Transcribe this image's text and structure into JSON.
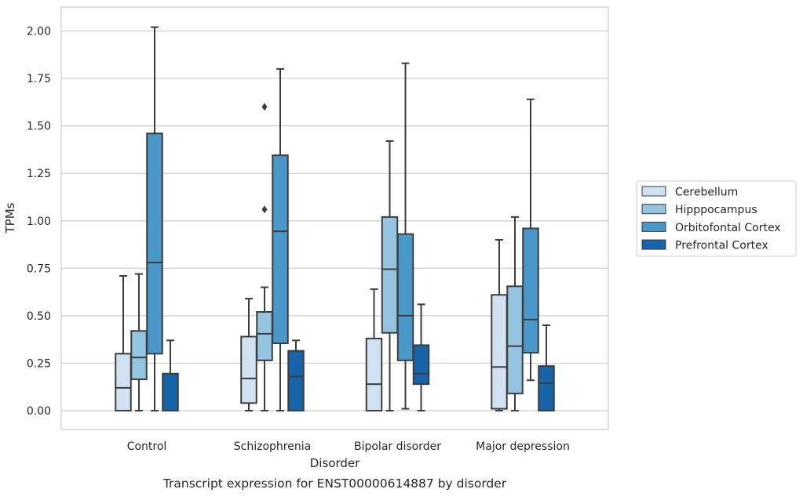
{
  "chart_data": {
    "type": "box",
    "xlabel": "Disorder",
    "ylabel": "TPMs",
    "caption": "Transcript expression for ENST00000614887 by disorder",
    "ylim": [
      -0.1,
      2.12
    ],
    "yticks": [
      0.0,
      0.25,
      0.5,
      0.75,
      1.0,
      1.25,
      1.5,
      1.75,
      2.0
    ],
    "ytick_labels": [
      "0.00",
      "0.25",
      "0.50",
      "0.75",
      "1.00",
      "1.25",
      "1.50",
      "1.75",
      "2.00"
    ],
    "grid": "horizontal",
    "legend_position": "right",
    "categories": [
      "Control",
      "Schizophrenia",
      "Bipolar disorder",
      "Major depression"
    ],
    "series": [
      {
        "name": "Cerebellum",
        "color": "#d0e1f2",
        "boxes": [
          {
            "whislo": 0.0,
            "q1": 0.0,
            "med": 0.12,
            "q3": 0.3,
            "whishi": 0.71,
            "fliers": []
          },
          {
            "whislo": 0.0,
            "q1": 0.04,
            "med": 0.17,
            "q3": 0.39,
            "whishi": 0.59,
            "fliers": []
          },
          {
            "whislo": 0.0,
            "q1": 0.0,
            "med": 0.14,
            "q3": 0.38,
            "whishi": 0.64,
            "fliers": []
          },
          {
            "whislo": 0.0,
            "q1": 0.01,
            "med": 0.23,
            "q3": 0.61,
            "whishi": 0.9,
            "fliers": []
          }
        ]
      },
      {
        "name": "Hipppocampus",
        "color": "#94c4df",
        "boxes": [
          {
            "whislo": 0.0,
            "q1": 0.165,
            "med": 0.28,
            "q3": 0.42,
            "whishi": 0.72,
            "fliers": []
          },
          {
            "whislo": 0.0,
            "q1": 0.265,
            "med": 0.405,
            "q3": 0.52,
            "whishi": 0.65,
            "fliers": [
              1.06,
              1.6
            ]
          },
          {
            "whislo": 0.0,
            "q1": 0.41,
            "med": 0.745,
            "q3": 1.02,
            "whishi": 1.42,
            "fliers": []
          },
          {
            "whislo": 0.0,
            "q1": 0.09,
            "med": 0.34,
            "q3": 0.655,
            "whishi": 1.02,
            "fliers": []
          }
        ]
      },
      {
        "name": "Orbitofontal Cortex",
        "color": "#4a98c9",
        "boxes": [
          {
            "whislo": 0.0,
            "q1": 0.3,
            "med": 0.78,
            "q3": 1.46,
            "whishi": 2.02,
            "fliers": []
          },
          {
            "whislo": 0.0,
            "q1": 0.355,
            "med": 0.945,
            "q3": 1.345,
            "whishi": 1.8,
            "fliers": []
          },
          {
            "whislo": 0.01,
            "q1": 0.265,
            "med": 0.5,
            "q3": 0.93,
            "whishi": 1.83,
            "fliers": []
          },
          {
            "whislo": 0.16,
            "q1": 0.305,
            "med": 0.48,
            "q3": 0.96,
            "whishi": 1.64,
            "fliers": []
          }
        ]
      },
      {
        "name": "Prefrontal Cortex",
        "color": "#1764ab",
        "boxes": [
          {
            "whislo": 0.0,
            "q1": 0.0,
            "med": 0.0,
            "q3": 0.195,
            "whishi": 0.37,
            "fliers": []
          },
          {
            "whislo": 0.0,
            "q1": 0.0,
            "med": 0.18,
            "q3": 0.315,
            "whishi": 0.37,
            "fliers": []
          },
          {
            "whislo": 0.0,
            "q1": 0.14,
            "med": 0.195,
            "q3": 0.345,
            "whishi": 0.56,
            "fliers": []
          },
          {
            "whislo": 0.0,
            "q1": 0.0,
            "med": 0.145,
            "q3": 0.235,
            "whishi": 0.45,
            "fliers": []
          }
        ]
      }
    ]
  }
}
